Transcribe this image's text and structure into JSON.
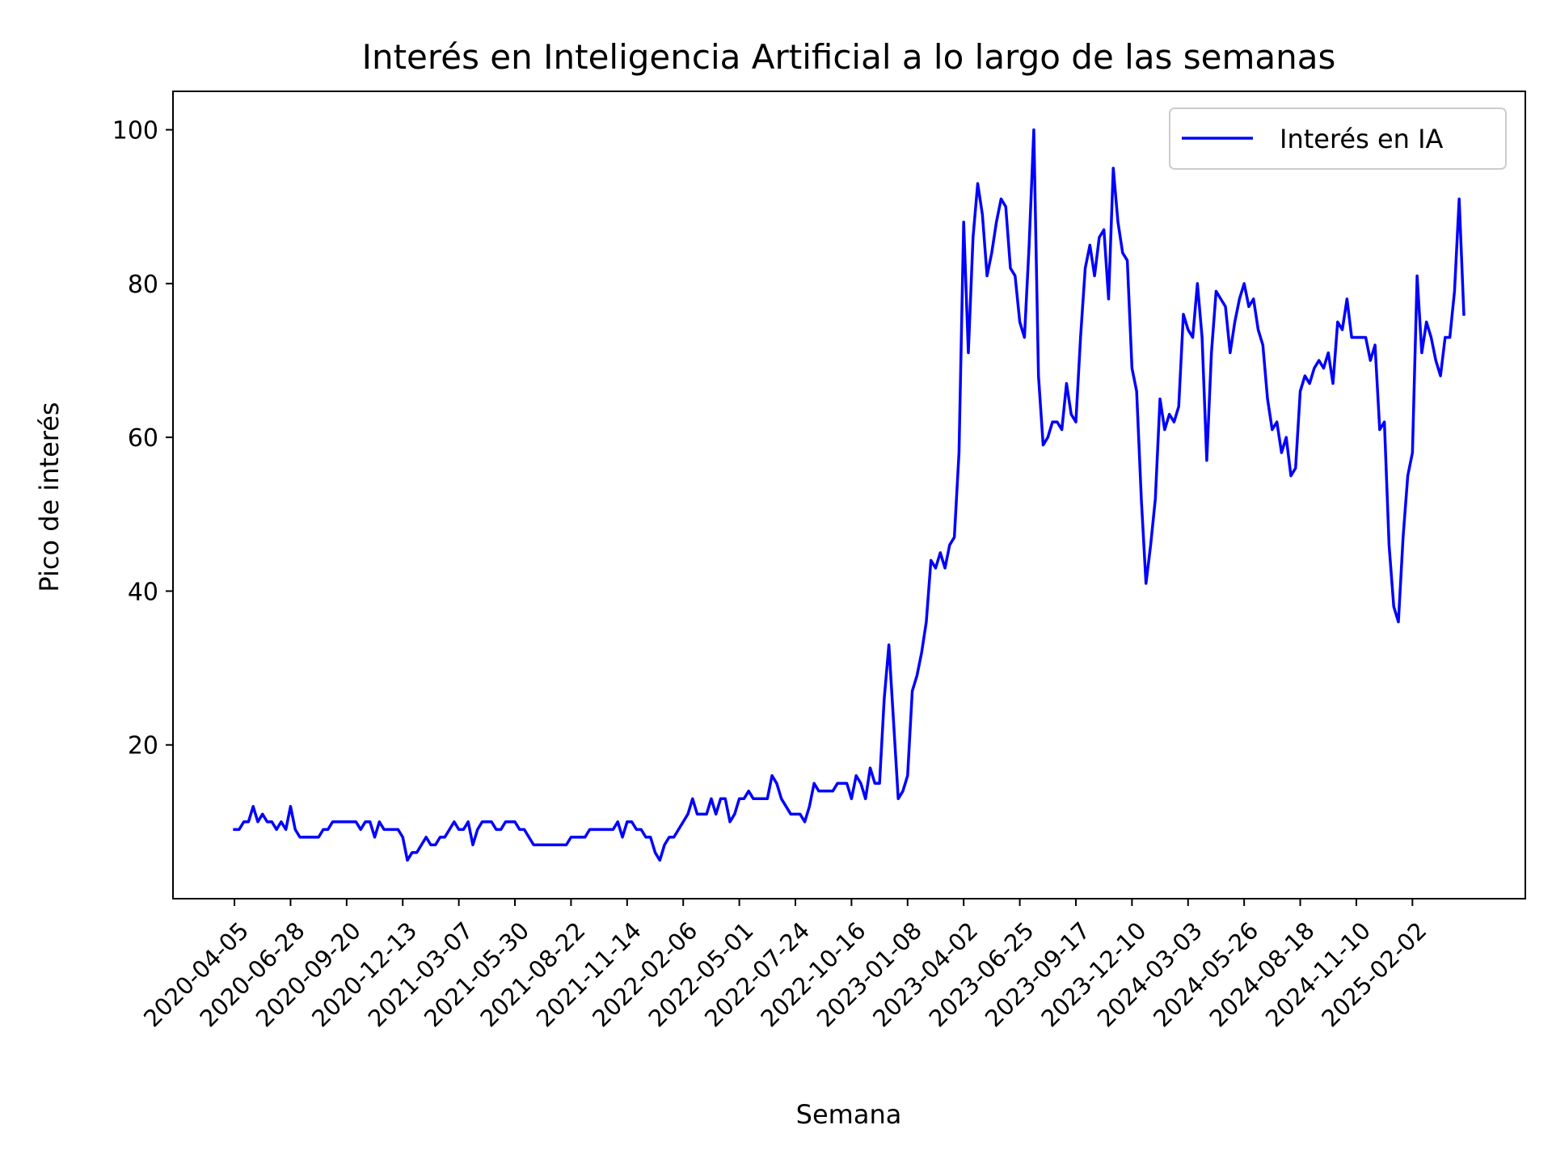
{
  "chart_data": {
    "type": "line",
    "title": "Interés en Inteligencia Artificial a lo largo de las semanas",
    "xlabel": "Semana",
    "ylabel": "Pico de interés",
    "ylim": [
      0,
      105
    ],
    "yticks": [
      20,
      40,
      60,
      80,
      100
    ],
    "grid": false,
    "legend_position": "top-right",
    "x_start": "2020-04-05",
    "x_step_days": 7,
    "xtick_labels": [
      "2020-04-05",
      "2020-06-28",
      "2020-09-20",
      "2020-12-13",
      "2021-03-07",
      "2021-05-30",
      "2021-08-22",
      "2021-11-14",
      "2022-02-06",
      "2022-05-01",
      "2022-07-24",
      "2022-10-16",
      "2023-01-08",
      "2023-04-02",
      "2023-06-25",
      "2023-09-17",
      "2023-12-10",
      "2024-03-03",
      "2024-05-26",
      "2024-08-18",
      "2024-11-10",
      "2025-02-02"
    ],
    "series": [
      {
        "name": "Interés en IA",
        "color": "#0000ff",
        "values": [
          9,
          9,
          10,
          10,
          12,
          10,
          11,
          10,
          10,
          9,
          10,
          9,
          12,
          9,
          8,
          8,
          8,
          8,
          8,
          9,
          9,
          10,
          10,
          10,
          10,
          10,
          10,
          9,
          10,
          10,
          8,
          10,
          9,
          9,
          9,
          9,
          8,
          5,
          6,
          6,
          7,
          8,
          7,
          7,
          8,
          8,
          9,
          10,
          9,
          9,
          10,
          7,
          9,
          10,
          10,
          10,
          9,
          9,
          10,
          10,
          10,
          9,
          9,
          8,
          7,
          7,
          7,
          7,
          7,
          7,
          7,
          7,
          8,
          8,
          8,
          8,
          9,
          9,
          9,
          9,
          9,
          9,
          10,
          8,
          10,
          10,
          9,
          9,
          8,
          8,
          6,
          5,
          7,
          8,
          8,
          9,
          10,
          11,
          13,
          11,
          11,
          11,
          13,
          11,
          13,
          13,
          10,
          11,
          13,
          13,
          14,
          13,
          13,
          13,
          13,
          16,
          15,
          13,
          12,
          11,
          11,
          11,
          10,
          12,
          15,
          14,
          14,
          14,
          14,
          15,
          15,
          15,
          13,
          16,
          15,
          13,
          17,
          15,
          15,
          26,
          33,
          23,
          13,
          14,
          16,
          27,
          29,
          32,
          36,
          44,
          43,
          45,
          43,
          46,
          47,
          58,
          88,
          71,
          86,
          93,
          89,
          81,
          84,
          88,
          91,
          90,
          82,
          81,
          75,
          73,
          85,
          100,
          68,
          59,
          60,
          62,
          62,
          61,
          67,
          63,
          62,
          73,
          82,
          85,
          81,
          86,
          87,
          78,
          95,
          88,
          84,
          83,
          69,
          66,
          52,
          41,
          46,
          52,
          65,
          61,
          63,
          62,
          64,
          76,
          74,
          73,
          80,
          73,
          57,
          71,
          79,
          78,
          77,
          71,
          75,
          78,
          80,
          77,
          78,
          74,
          72,
          65,
          61,
          62,
          58,
          60,
          55,
          56,
          66,
          68,
          67,
          69,
          70,
          69,
          71,
          67,
          75,
          74,
          78,
          73,
          73,
          73,
          73,
          70,
          72,
          61,
          62,
          46,
          38,
          36,
          47,
          55,
          58,
          81,
          71,
          75,
          73,
          70,
          68,
          73,
          73,
          79,
          91,
          76
        ]
      }
    ]
  }
}
